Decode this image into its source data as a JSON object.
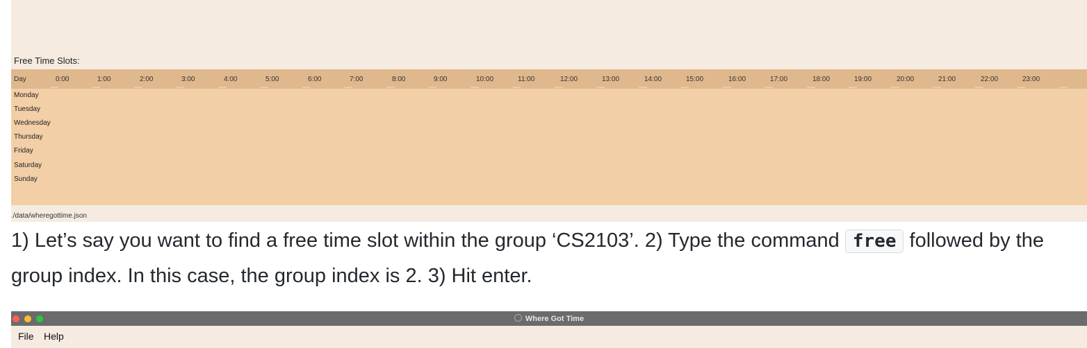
{
  "free_slots": {
    "title": "Free Time Slots:",
    "day_header": "Day",
    "hours": [
      "0:00",
      "1:00",
      "2:00",
      "3:00",
      "4:00",
      "5:00",
      "6:00",
      "7:00",
      "8:00",
      "9:00",
      "10:00",
      "11:00",
      "12:00",
      "13:00",
      "14:00",
      "15:00",
      "16:00",
      "17:00",
      "18:00",
      "19:00",
      "20:00",
      "21:00",
      "22:00",
      "23:00"
    ],
    "days": [
      "Monday",
      "Tuesday",
      "Wednesday",
      "Thursday",
      "Friday",
      "Saturday",
      "Sunday"
    ]
  },
  "status": {
    "path": "./data/wheregottime.json"
  },
  "instructions": {
    "part1": "1) Let’s say you want to find a free time slot within the group ‘CS2103’. 2) Type the command",
    "command": "free",
    "part2": "followed by the group index. In this case, the group index is 2. 3) Hit enter."
  },
  "window": {
    "title": "Where Got Time",
    "menu": [
      "File",
      "Help"
    ]
  },
  "colors": {
    "app_background": "#f5ebe0",
    "grid_body": "#f3cfa7",
    "grid_header": "#dfb88d",
    "titlebar": "#6b6b6b"
  }
}
